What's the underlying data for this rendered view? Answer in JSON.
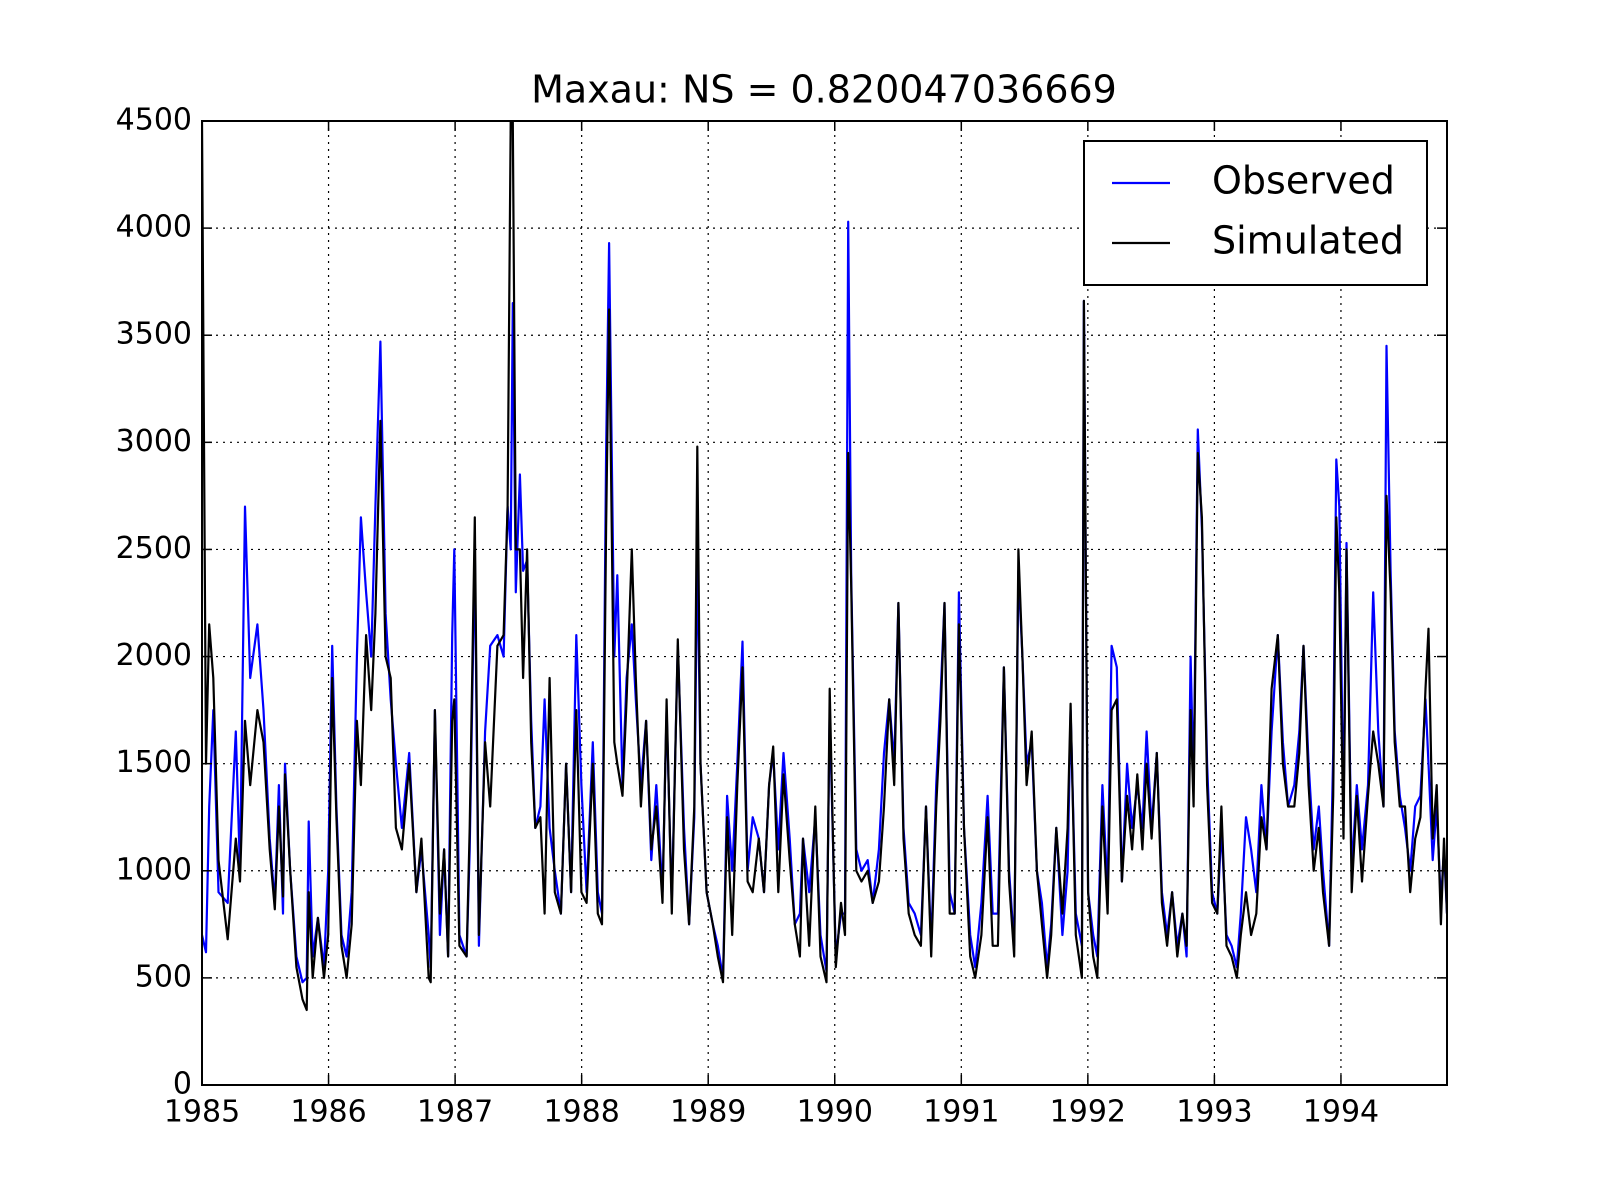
{
  "chart_data": {
    "type": "line",
    "title": "Maxau: NS = 0.820047036669",
    "xlim": [
      1985,
      1994.838
    ],
    "xticks": [
      1985,
      1986,
      1987,
      1988,
      1989,
      1990,
      1991,
      1992,
      1993,
      1994
    ],
    "ylim": [
      0,
      4500
    ],
    "yticks": [
      0,
      500,
      1000,
      1500,
      2000,
      2500,
      3000,
      3500,
      4000,
      4500
    ],
    "grid": true,
    "legend": "upper right",
    "x": [
      1985.0,
      1985.032,
      1985.057,
      1985.089,
      1985.13,
      1985.203,
      1985.267,
      1985.3,
      1985.34,
      1985.381,
      1985.438,
      1985.486,
      1985.535,
      1985.575,
      1985.608,
      1985.64,
      1985.656,
      1985.697,
      1985.746,
      1985.794,
      1985.827,
      1985.843,
      1985.875,
      1985.916,
      1985.964,
      1985.997,
      1986.029,
      1986.062,
      1986.102,
      1986.143,
      1986.183,
      1986.224,
      1986.256,
      1986.297,
      1986.337,
      1986.37,
      1986.41,
      1986.451,
      1986.491,
      1986.532,
      1986.58,
      1986.637,
      1986.694,
      1986.734,
      1986.791,
      1986.807,
      1986.84,
      1986.88,
      1986.913,
      1986.945,
      1986.977,
      1986.994,
      1987.034,
      1987.091,
      1987.115,
      1987.156,
      1987.188,
      1987.237,
      1987.277,
      1987.334,
      1987.383,
      1987.415,
      1987.439,
      1987.456,
      1987.48,
      1987.512,
      1987.537,
      1987.569,
      1987.601,
      1987.634,
      1987.674,
      1987.707,
      1987.747,
      1987.788,
      1987.836,
      1987.877,
      1987.917,
      1987.958,
      1987.998,
      1988.039,
      1988.088,
      1988.128,
      1988.161,
      1988.193,
      1988.217,
      1988.258,
      1988.282,
      1988.323,
      1988.355,
      1988.396,
      1988.428,
      1988.468,
      1988.509,
      1988.55,
      1988.59,
      1988.639,
      1988.671,
      1988.712,
      1988.76,
      1988.809,
      1988.849,
      1988.89,
      1988.914,
      1988.939,
      1988.987,
      1989.036,
      1989.076,
      1989.117,
      1989.149,
      1989.19,
      1989.23,
      1989.271,
      1989.311,
      1989.352,
      1989.4,
      1989.441,
      1989.481,
      1989.514,
      1989.554,
      1989.595,
      1989.644,
      1989.684,
      1989.725,
      1989.749,
      1989.798,
      1989.846,
      1989.887,
      1989.935,
      1989.96,
      1990.008,
      1990.049,
      1990.081,
      1990.106,
      1990.13,
      1990.17,
      1990.211,
      1990.26,
      1990.3,
      1990.349,
      1990.389,
      1990.43,
      1990.47,
      1990.503,
      1990.543,
      1990.584,
      1990.632,
      1990.681,
      1990.721,
      1990.762,
      1990.802,
      1990.835,
      1990.867,
      1990.908,
      1990.948,
      1990.981,
      1991.021,
      1991.07,
      1991.11,
      1991.159,
      1991.208,
      1991.248,
      1991.289,
      1991.337,
      1991.378,
      1991.418,
      1991.451,
      1991.483,
      1991.516,
      1991.556,
      1991.597,
      1991.637,
      1991.678,
      1991.71,
      1991.751,
      1991.799,
      1991.84,
      1991.864,
      1991.905,
      1991.953,
      1991.969,
      1992.002,
      1992.042,
      1992.075,
      1992.115,
      1992.156,
      1992.188,
      1992.229,
      1992.269,
      1992.31,
      1992.35,
      1992.391,
      1992.431,
      1992.464,
      1992.504,
      1992.545,
      1992.585,
      1992.626,
      1992.666,
      1992.707,
      1992.747,
      1992.78,
      1992.812,
      1992.836,
      1992.869,
      1992.901,
      1992.942,
      1992.982,
      1993.023,
      1993.055,
      1993.096,
      1993.136,
      1993.177,
      1993.209,
      1993.25,
      1993.29,
      1993.331,
      1993.371,
      1993.412,
      1993.452,
      1993.501,
      1993.541,
      1993.582,
      1993.631,
      1993.671,
      1993.704,
      1993.744,
      1993.785,
      1993.825,
      1993.858,
      1993.906,
      1993.939,
      1993.963,
      1993.987,
      1994.02,
      1994.044,
      1994.085,
      1994.125,
      1994.166,
      1994.214,
      1994.255,
      1994.295,
      1994.336,
      1994.36,
      1994.392,
      1994.425,
      1994.465,
      1994.506,
      1994.547,
      1994.587,
      1994.628,
      1994.668,
      1994.692,
      1994.725,
      1994.757,
      1994.79,
      1994.814,
      1994.838
    ],
    "series": [
      {
        "name": "Observed",
        "color": "#0000ff",
        "values": [
          700,
          620,
          1300,
          1750,
          900,
          850,
          1650,
          1000,
          2700,
          1900,
          2150,
          1750,
          1150,
          850,
          1400,
          800,
          1500,
          1000,
          600,
          480,
          500,
          1230,
          600,
          780,
          550,
          1000,
          2050,
          1300,
          700,
          600,
          900,
          2000,
          2650,
          2300,
          2000,
          2700,
          3470,
          2200,
          1800,
          1500,
          1200,
          1550,
          900,
          1100,
          700,
          550,
          1750,
          700,
          1100,
          600,
          2100,
          2500,
          700,
          600,
          1100,
          2500,
          650,
          1650,
          2050,
          2100,
          2000,
          2700,
          2500,
          3650,
          2300,
          2850,
          2400,
          2450,
          1700,
          1200,
          1300,
          1800,
          1200,
          1000,
          800,
          1500,
          900,
          2100,
          1400,
          900,
          1600,
          900,
          800,
          2950,
          3930,
          2000,
          2380,
          1400,
          1900,
          2150,
          1800,
          1400,
          1700,
          1050,
          1400,
          900,
          1750,
          850,
          2050,
          1200,
          750,
          1250,
          2500,
          1500,
          900,
          750,
          650,
          500,
          1350,
          1000,
          1500,
          2070,
          1000,
          1250,
          1150,
          900,
          1400,
          1550,
          1100,
          1550,
          1150,
          750,
          800,
          1150,
          900,
          1250,
          700,
          530,
          1750,
          600,
          800,
          800,
          4030,
          2380,
          1100,
          1000,
          1050,
          850,
          1100,
          1550,
          1800,
          1500,
          2250,
          1200,
          850,
          800,
          700,
          1300,
          650,
          1400,
          1800,
          2250,
          900,
          800,
          2300,
          1200,
          700,
          550,
          850,
          1350,
          800,
          800,
          1950,
          1000,
          650,
          2400,
          2000,
          1500,
          1600,
          1000,
          850,
          550,
          750,
          1200,
          700,
          1000,
          1750,
          800,
          650,
          3660,
          900,
          700,
          600,
          1400,
          900,
          2050,
          1950,
          950,
          1500,
          1200,
          1400,
          1200,
          1650,
          1200,
          1550,
          900,
          700,
          900,
          650,
          800,
          600,
          2000,
          1400,
          3060,
          2600,
          1500,
          900,
          800,
          1200,
          700,
          650,
          550,
          800,
          1250,
          1100,
          900,
          1400,
          1100,
          1650,
          2100,
          1600,
          1300,
          1400,
          1650,
          2050,
          1500,
          1100,
          1300,
          1000,
          650,
          1550,
          2920,
          2700,
          1250,
          2530,
          1000,
          1400,
          1100,
          1400,
          2300,
          1650,
          1300,
          3450,
          2400,
          1650,
          1350,
          1200,
          1000,
          1300,
          1350,
          1800,
          1500,
          1050,
          1300,
          850,
          1100,
          800
        ]
      },
      {
        "name": "Simulated",
        "color": "#000000",
        "values": [
          4500,
          1500,
          2150,
          1900,
          1050,
          680,
          1150,
          950,
          1700,
          1400,
          1750,
          1600,
          1100,
          820,
          1300,
          880,
          1450,
          1000,
          550,
          400,
          350,
          900,
          500,
          780,
          500,
          700,
          1900,
          1250,
          650,
          500,
          750,
          1700,
          1400,
          2100,
          1750,
          2200,
          3100,
          2000,
          1900,
          1200,
          1100,
          1500,
          900,
          1150,
          500,
          480,
          1750,
          800,
          1100,
          600,
          1700,
          1800,
          650,
          600,
          1200,
          2650,
          700,
          1600,
          1300,
          2050,
          2100,
          2700,
          4500,
          4500,
          2500,
          2500,
          1900,
          2500,
          1600,
          1200,
          1250,
          800,
          1900,
          900,
          800,
          1500,
          900,
          1750,
          900,
          850,
          1500,
          800,
          750,
          2600,
          3620,
          1600,
          1500,
          1350,
          1800,
          2500,
          1900,
          1300,
          1700,
          1100,
          1300,
          850,
          1800,
          800,
          2080,
          1100,
          750,
          1300,
          2980,
          1500,
          900,
          750,
          600,
          480,
          1250,
          700,
          1400,
          1950,
          950,
          900,
          1150,
          900,
          1400,
          1580,
          900,
          1450,
          1050,
          750,
          600,
          1150,
          650,
          1300,
          600,
          480,
          1850,
          550,
          850,
          700,
          2950,
          2330,
          1000,
          950,
          1000,
          850,
          950,
          1300,
          1800,
          1400,
          2250,
          1150,
          800,
          700,
          650,
          1300,
          600,
          1300,
          1700,
          2250,
          800,
          800,
          2150,
          1200,
          600,
          500,
          700,
          1250,
          650,
          650,
          1950,
          950,
          600,
          2500,
          2000,
          1400,
          1650,
          1000,
          750,
          500,
          700,
          1200,
          800,
          1200,
          1780,
          700,
          500,
          3660,
          900,
          600,
          500,
          1300,
          800,
          1750,
          1800,
          950,
          1350,
          1100,
          1450,
          1100,
          1500,
          1150,
          1550,
          850,
          650,
          900,
          600,
          800,
          650,
          1750,
          1300,
          2950,
          2650,
          1400,
          850,
          800,
          1300,
          650,
          600,
          500,
          700,
          900,
          700,
          800,
          1250,
          1100,
          1850,
          2100,
          1500,
          1300,
          1300,
          1550,
          2050,
          1400,
          1000,
          1200,
          900,
          650,
          1350,
          2650,
          2300,
          1150,
          2500,
          900,
          1350,
          950,
          1350,
          1650,
          1500,
          1300,
          2750,
          2300,
          1600,
          1300,
          1300,
          900,
          1150,
          1250,
          1850,
          2130,
          1150,
          1400,
          750,
          1150,
          800
        ]
      }
    ]
  }
}
